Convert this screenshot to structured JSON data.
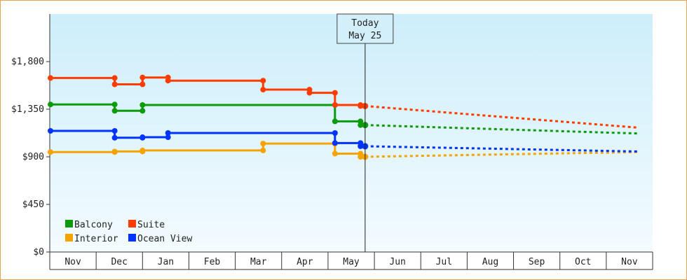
{
  "chart_data": {
    "type": "line",
    "ylim": [
      0,
      2250
    ],
    "y_ticks": [
      {
        "value": 0,
        "label": "$0"
      },
      {
        "value": 450,
        "label": "$450"
      },
      {
        "value": 900,
        "label": "$900"
      },
      {
        "value": 1350,
        "label": "$1,350"
      },
      {
        "value": 1800,
        "label": "$1,800"
      }
    ],
    "x_months": [
      "Nov",
      "Dec",
      "Jan",
      "Feb",
      "Mar",
      "Apr",
      "May",
      "Jun",
      "Jul",
      "Aug",
      "Sep",
      "Oct",
      "Nov"
    ],
    "today": {
      "line1": "Today",
      "line2": "May 25",
      "month_pos": 6.8
    },
    "legend_position": "bottom-left",
    "series": [
      {
        "name": "Balcony",
        "color": "#0d9a0d",
        "history": [
          [
            0,
            1395
          ],
          [
            1.4,
            1395
          ],
          [
            1.4,
            1335
          ],
          [
            2,
            1335
          ],
          [
            2,
            1390
          ],
          [
            6.15,
            1390
          ],
          [
            6.15,
            1235
          ],
          [
            6.7,
            1235
          ],
          [
            6.7,
            1200
          ],
          [
            6.8,
            1200
          ]
        ],
        "forecast": [
          [
            6.8,
            1200
          ],
          [
            12.7,
            1120
          ]
        ]
      },
      {
        "name": "Suite",
        "color": "#ff3c00",
        "history": [
          [
            0,
            1645
          ],
          [
            1.4,
            1645
          ],
          [
            1.4,
            1585
          ],
          [
            2,
            1585
          ],
          [
            2,
            1650
          ],
          [
            2.55,
            1650
          ],
          [
            2.55,
            1620
          ],
          [
            4.6,
            1620
          ],
          [
            4.6,
            1535
          ],
          [
            5.6,
            1535
          ],
          [
            5.6,
            1505
          ],
          [
            6.15,
            1505
          ],
          [
            6.15,
            1390
          ],
          [
            6.7,
            1390
          ],
          [
            6.7,
            1380
          ],
          [
            6.8,
            1380
          ]
        ],
        "forecast": [
          [
            6.8,
            1380
          ],
          [
            12.7,
            1175
          ]
        ]
      },
      {
        "name": "Interior",
        "color": "#f5a300",
        "history": [
          [
            0,
            945
          ],
          [
            1.4,
            945
          ],
          [
            1.4,
            950
          ],
          [
            2,
            950
          ],
          [
            2,
            960
          ],
          [
            4.6,
            960
          ],
          [
            4.6,
            1025
          ],
          [
            6.15,
            1025
          ],
          [
            6.15,
            930
          ],
          [
            6.7,
            930
          ],
          [
            6.7,
            900
          ],
          [
            6.8,
            900
          ]
        ],
        "forecast": [
          [
            6.8,
            900
          ],
          [
            12.7,
            945
          ]
        ]
      },
      {
        "name": "Ocean View",
        "color": "#0033ff",
        "history": [
          [
            0,
            1145
          ],
          [
            1.4,
            1145
          ],
          [
            1.4,
            1080
          ],
          [
            2,
            1080
          ],
          [
            2,
            1085
          ],
          [
            2.55,
            1085
          ],
          [
            2.55,
            1125
          ],
          [
            6.15,
            1125
          ],
          [
            6.15,
            1030
          ],
          [
            6.7,
            1030
          ],
          [
            6.7,
            1000
          ],
          [
            6.8,
            1000
          ]
        ],
        "forecast": [
          [
            6.8,
            1000
          ],
          [
            12.7,
            950
          ]
        ]
      }
    ]
  }
}
